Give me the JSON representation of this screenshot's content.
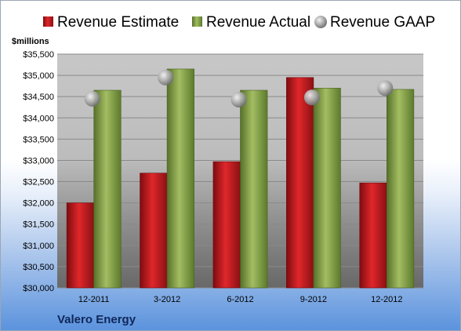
{
  "colors": {
    "estimate": "#c0181c",
    "actual": "#7f9c3a",
    "gaap": "#b5b5b5"
  },
  "chart_data": {
    "type": "bar",
    "categories": [
      "12-2011",
      "3-2012",
      "6-2012",
      "9-2012",
      "12-2012"
    ],
    "series": [
      {
        "name": "Revenue Estimate",
        "values": [
          32000,
          32700,
          32970,
          34950,
          32470
        ]
      },
      {
        "name": "Revenue Actual",
        "values": [
          34650,
          35150,
          34650,
          34700,
          34670
        ]
      },
      {
        "name": "Revenue GAAP",
        "type": "scatter",
        "values": [
          34450,
          34950,
          34430,
          34480,
          34700
        ]
      }
    ],
    "ylabel": "$millions",
    "ylim": [
      30000,
      35500
    ],
    "yticks": [
      "$30,000",
      "$30,500",
      "$31,000",
      "$31,500",
      "$32,000",
      "$32,500",
      "$33,000",
      "$33,500",
      "$34,000",
      "$34,500",
      "$35,000",
      "$35,500"
    ],
    "grid": true,
    "legend": "top"
  },
  "legend": {
    "estimate": "Revenue Estimate",
    "actual": "Revenue Actual",
    "gaap": "Revenue GAAP"
  },
  "axis": {
    "unit_label": "$millions"
  },
  "footer": {
    "company": "Valero Energy"
  }
}
